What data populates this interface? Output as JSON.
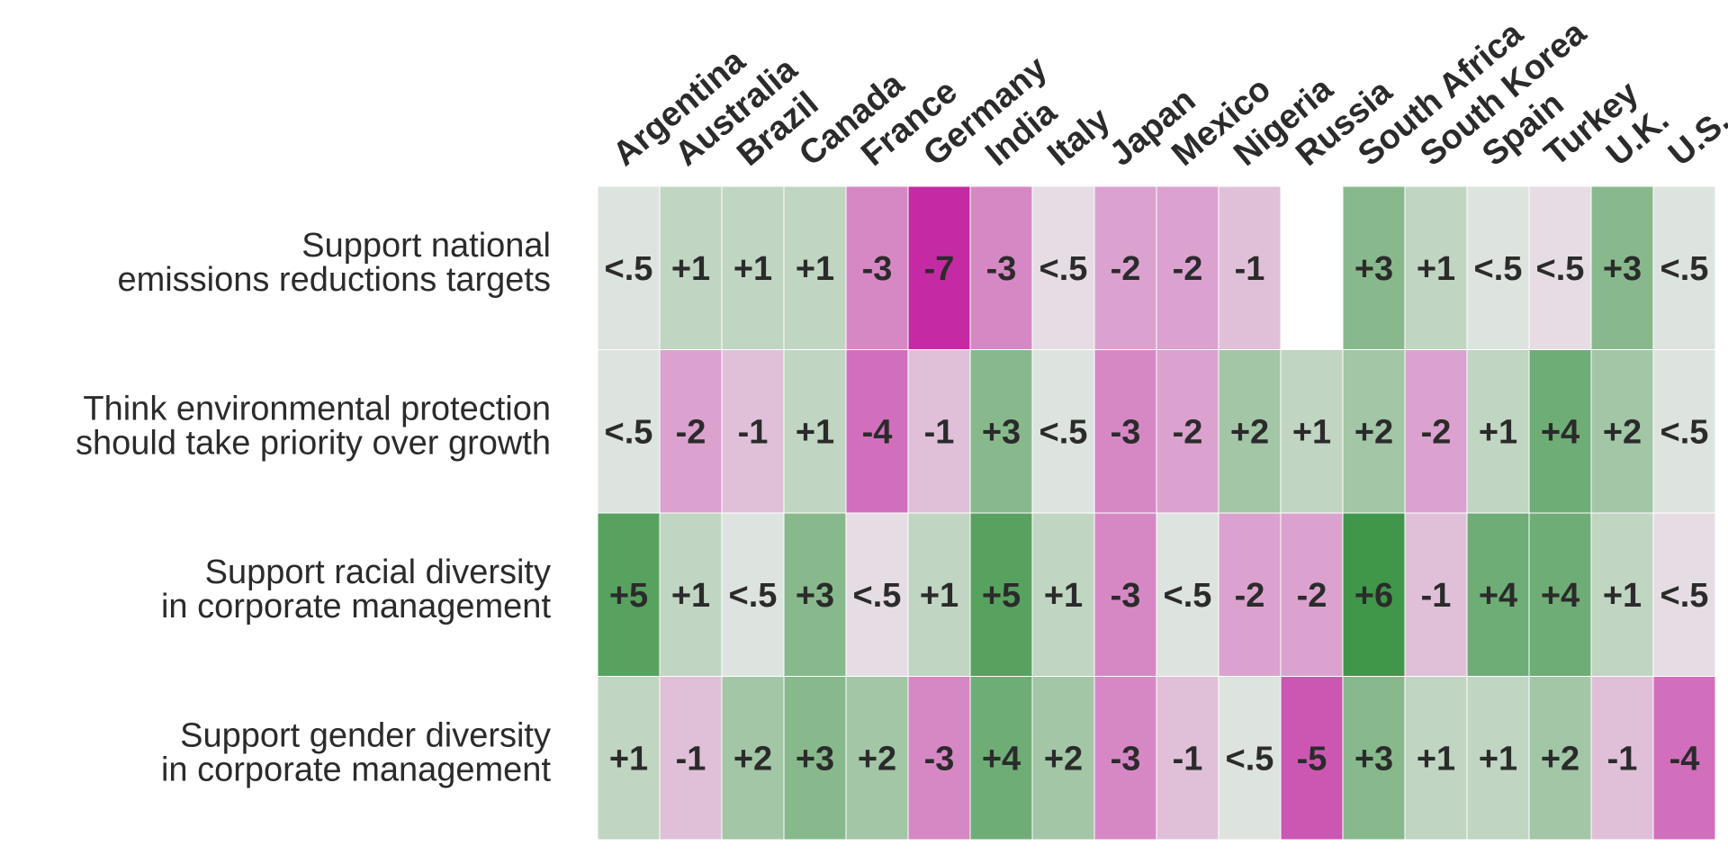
{
  "chart_data": {
    "type": "heatmap",
    "columns": [
      "Argentina",
      "Australia",
      "Brazil",
      "Canada",
      "France",
      "Germany",
      "India",
      "Italy",
      "Japan",
      "Mexico",
      "Nigeria",
      "Russia",
      "South Africa",
      "South Korea",
      "Spain",
      "Turkey",
      "U.K.",
      "U.S."
    ],
    "rows": [
      {
        "label_lines": [
          "Support national",
          "emissions reductions targets"
        ],
        "labels": [
          "<.5",
          "+1",
          "+1",
          "+1",
          "-3",
          "-7",
          "-3",
          "<.5",
          "-2",
          "-2",
          "-1",
          null,
          "+3",
          "+1",
          "<.5",
          "<.5",
          "+3",
          "<.5"
        ],
        "values": [
          0.2,
          1,
          1,
          1,
          -3,
          -7,
          -3,
          -0.2,
          -2,
          -2,
          -1,
          null,
          3,
          1,
          0.2,
          -0.2,
          3,
          0.2
        ]
      },
      {
        "label_lines": [
          "Think environmental protection",
          "should take priority over growth"
        ],
        "labels": [
          "<.5",
          "-2",
          "-1",
          "+1",
          "-4",
          "-1",
          "+3",
          "<.5",
          "-3",
          "-2",
          "+2",
          "+1",
          "+2",
          "-2",
          "+1",
          "+4",
          "+2",
          "<.5"
        ],
        "values": [
          0.2,
          -2,
          -1,
          1,
          -4,
          -1,
          3,
          0.2,
          -3,
          -2,
          2,
          1,
          2,
          -2,
          1,
          4,
          2,
          0.2
        ]
      },
      {
        "label_lines": [
          "Support racial diversity",
          "in corporate management"
        ],
        "labels": [
          "+5",
          "+1",
          "<.5",
          "+3",
          "<.5",
          "+1",
          "+5",
          "+1",
          "-3",
          "<.5",
          "-2",
          "-2",
          "+6",
          "-1",
          "+4",
          "+4",
          "+1",
          "<.5"
        ],
        "values": [
          5,
          1,
          0.2,
          3,
          -0.2,
          1,
          5,
          1,
          -3,
          0.2,
          -2,
          -2,
          6,
          -1,
          4,
          4,
          1,
          -0.2
        ]
      },
      {
        "label_lines": [
          "Support gender diversity",
          "in corporate management"
        ],
        "labels": [
          "+1",
          "-1",
          "+2",
          "+3",
          "+2",
          "-3",
          "+4",
          "+2",
          "-3",
          "-1",
          "<.5",
          "-5",
          "+3",
          "+1",
          "+1",
          "+2",
          "-1",
          "-4"
        ],
        "values": [
          1,
          -1,
          2,
          3,
          2,
          -3,
          4,
          2,
          -3,
          -1,
          0.2,
          -5,
          3,
          1,
          1,
          2,
          -1,
          -4
        ]
      }
    ],
    "color_scale": {
      "negative": "#c42aa3",
      "neutral": "#e8e8e8",
      "positive": "#2a8c35"
    }
  }
}
